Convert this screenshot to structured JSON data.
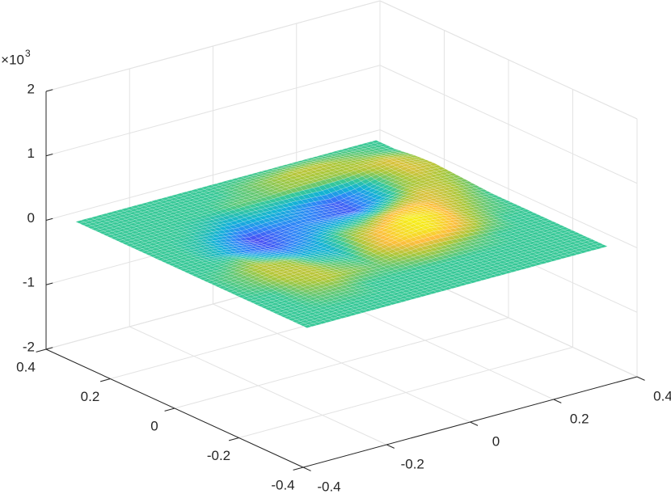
{
  "chart_data": {
    "type": "surface",
    "x": [
      -0.36,
      -0.3,
      -0.24,
      -0.18,
      -0.12,
      -0.06,
      0,
      0.06,
      0.12,
      0.18,
      0.24,
      0.3,
      0.36
    ],
    "y": [
      -0.36,
      -0.3,
      -0.24,
      -0.18,
      -0.12,
      -0.06,
      0,
      0.06,
      0.12,
      0.18,
      0.24,
      0.3,
      0.36
    ],
    "z": [
      [
        0,
        0,
        0,
        0,
        0,
        0,
        0,
        0,
        0,
        0,
        0,
        0,
        0
      ],
      [
        0,
        0,
        0,
        0,
        0,
        0,
        0,
        0,
        0,
        0,
        0,
        0,
        0
      ],
      [
        0,
        0,
        0.02,
        0.02,
        0,
        0,
        0,
        0,
        0,
        0,
        0,
        0,
        0
      ],
      [
        0,
        0,
        0.04,
        0.06,
        0.04,
        0.02,
        0.04,
        0.06,
        0.04,
        0.02,
        0,
        0,
        0
      ],
      [
        0,
        0.02,
        0.06,
        0.06,
        0.02,
        0,
        0.08,
        0.14,
        0.16,
        0.1,
        0.04,
        0,
        0
      ],
      [
        0,
        0.02,
        0.06,
        0.04,
        -0.02,
        -0.04,
        0.06,
        0.12,
        0.18,
        0.14,
        0.06,
        0.02,
        0
      ],
      [
        0,
        0,
        0.02,
        -0.04,
        -0.08,
        -0.06,
        0.02,
        0.04,
        0.1,
        0.12,
        0.08,
        0.04,
        0
      ],
      [
        0,
        0,
        -0.04,
        -0.1,
        -0.14,
        -0.1,
        -0.06,
        -0.04,
        -0.02,
        0.04,
        0.08,
        0.06,
        0.02
      ],
      [
        0,
        0,
        -0.02,
        -0.08,
        -0.16,
        -0.12,
        -0.1,
        -0.12,
        -0.14,
        -0.06,
        0.04,
        0.06,
        0.04
      ],
      [
        0,
        0,
        0,
        -0.02,
        -0.06,
        -0.04,
        -0.06,
        -0.1,
        -0.14,
        -0.08,
        0.02,
        0.08,
        0.06
      ],
      [
        0,
        0,
        0,
        0,
        0,
        0.02,
        0.02,
        0.04,
        0.04,
        0.04,
        0.06,
        0.08,
        0.04
      ],
      [
        0,
        0,
        0,
        0,
        0,
        0,
        0.02,
        0.04,
        0.06,
        0.06,
        0.04,
        0.02,
        0
      ],
      [
        0,
        0,
        0,
        0,
        0,
        0,
        0,
        0,
        0,
        0,
        0,
        0,
        0
      ]
    ],
    "xlim": [
      -0.4,
      0.4
    ],
    "xticks": [
      -0.4,
      -0.2,
      0,
      0.2,
      0.4
    ],
    "ylim": [
      -0.4,
      0.4
    ],
    "yticks": [
      -0.4,
      -0.2,
      0,
      0.2,
      0.4
    ],
    "zlim": [
      -2,
      2
    ],
    "zticks": [
      -2,
      -1,
      0,
      1,
      2
    ],
    "z_multiplier": {
      "base": "×10",
      "power": 3
    },
    "clim": [
      -0.2,
      0.2
    ],
    "colormap": "parula",
    "grid": true
  }
}
